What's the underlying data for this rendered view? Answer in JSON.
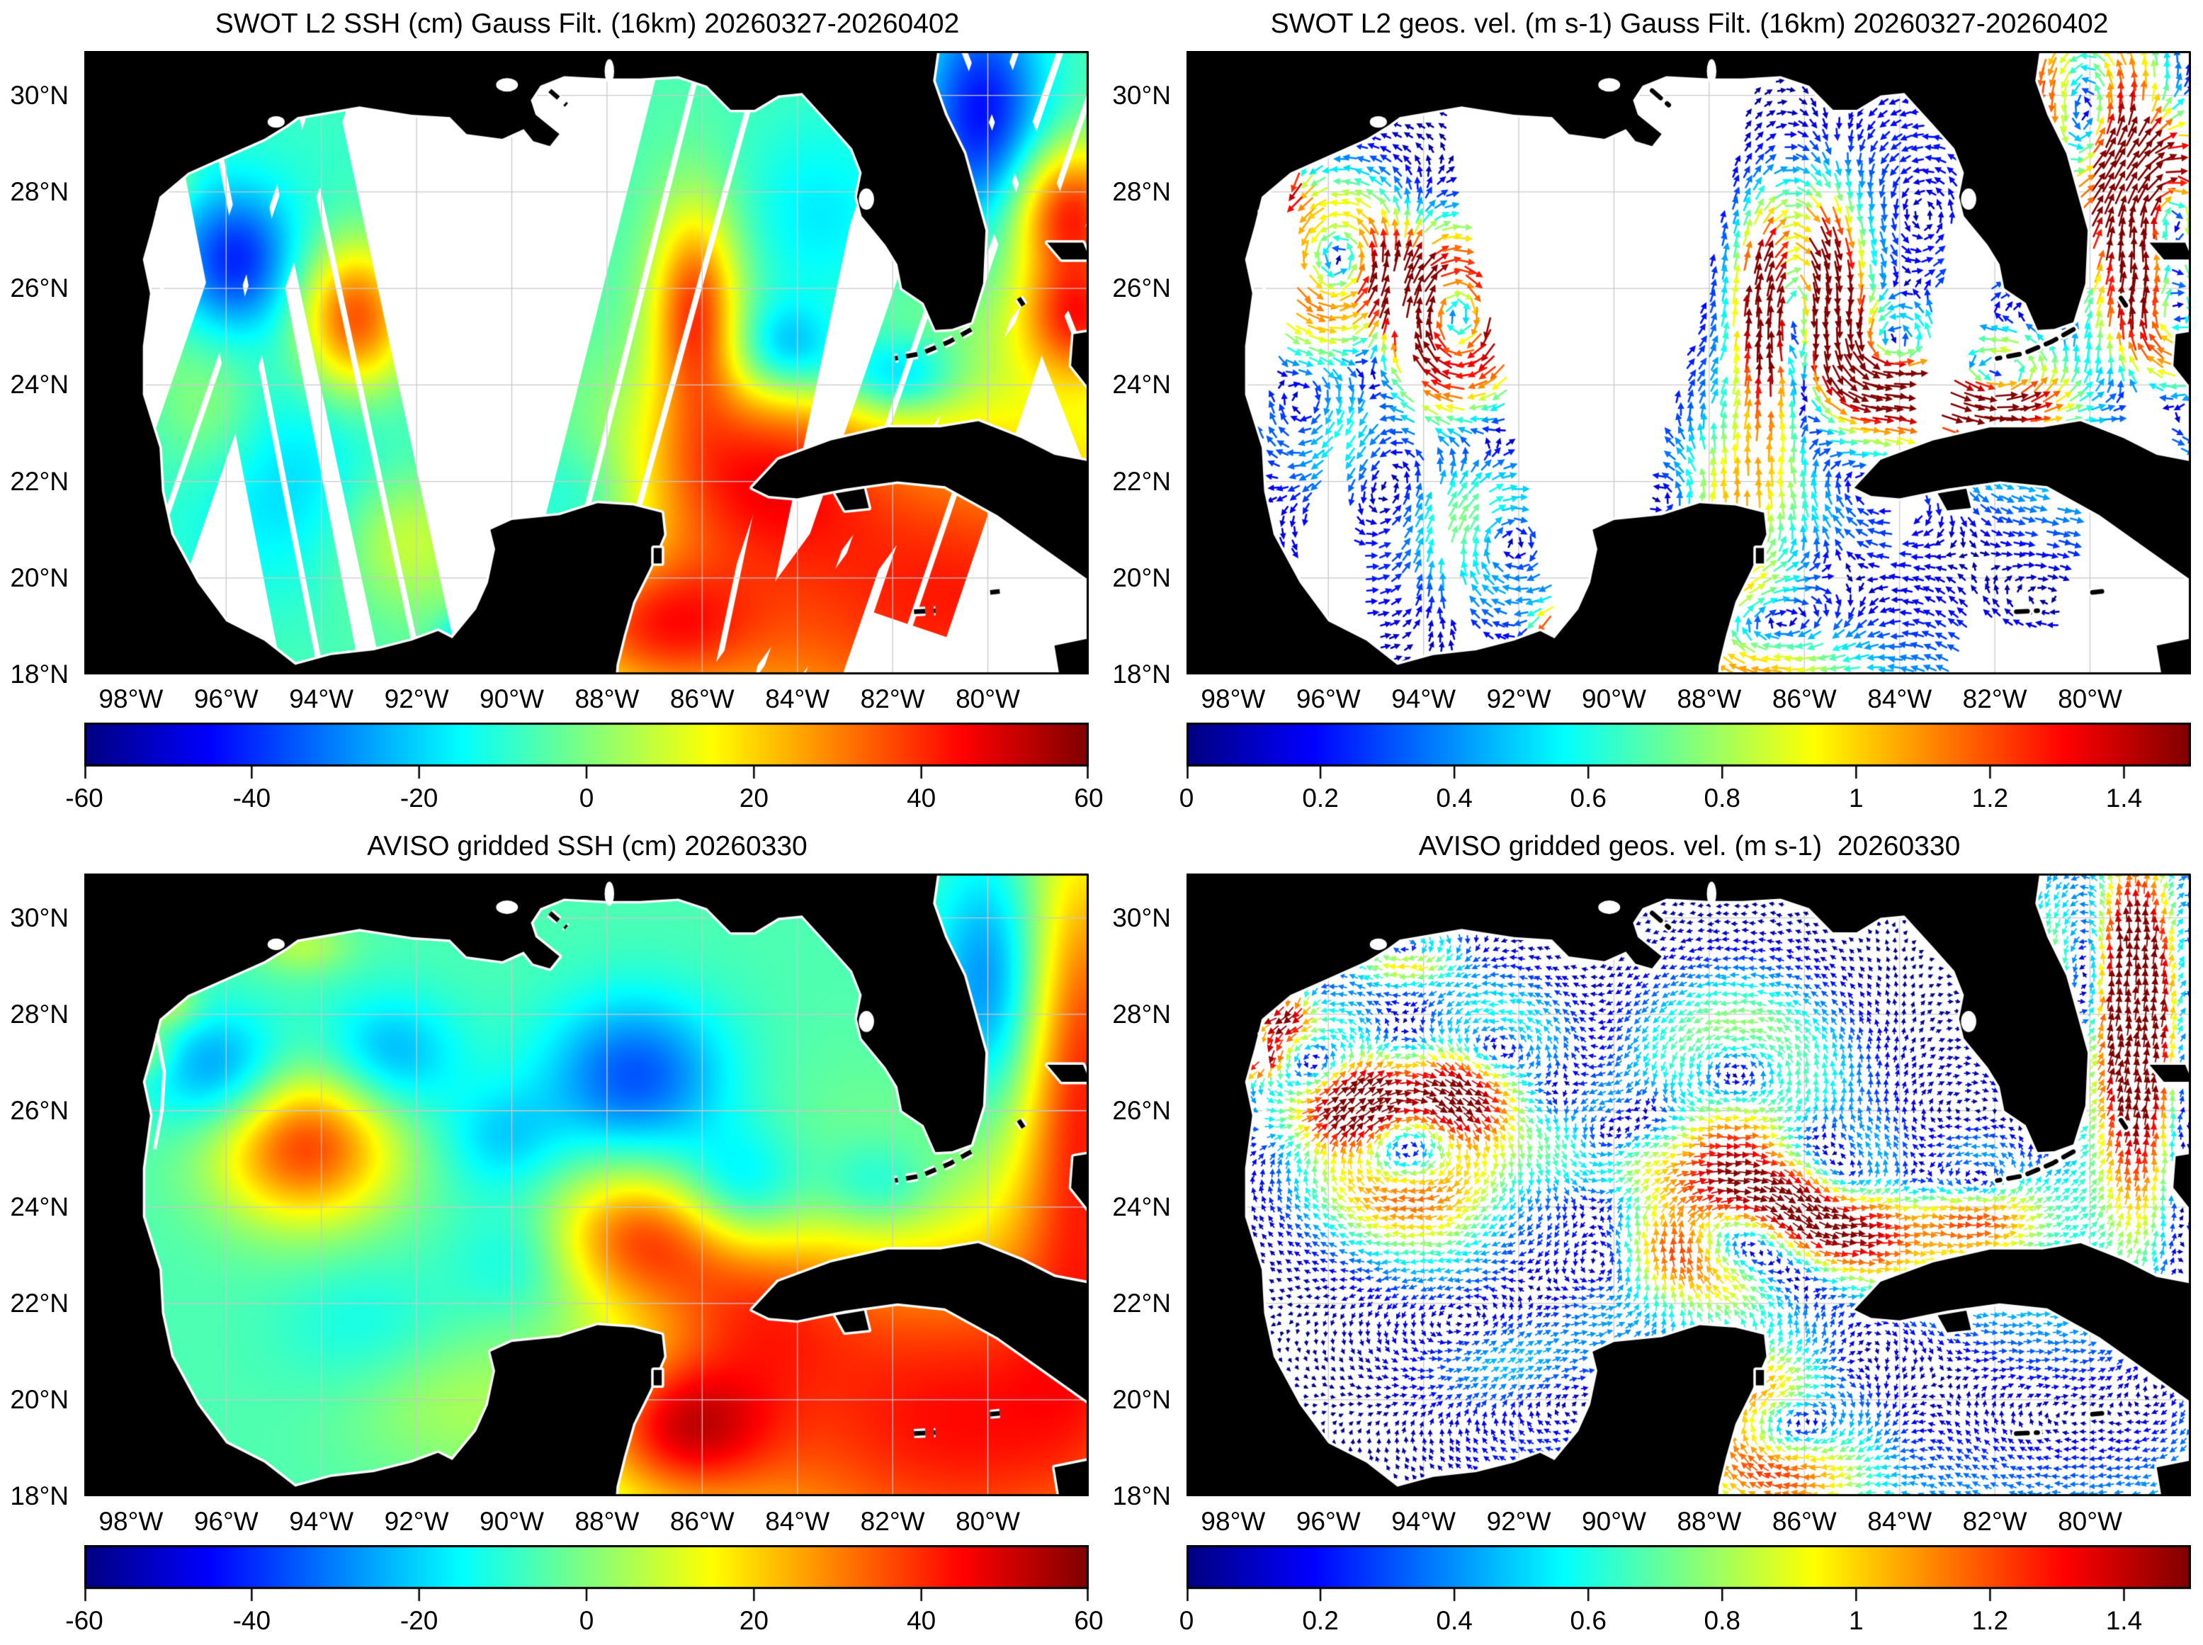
{
  "figure": {
    "background": "#ffffff",
    "accent_text_color": "#000000"
  },
  "geo": {
    "lon_min": -98.98,
    "lon_max": -77.88,
    "lat_min": 18.0,
    "lat_max": 30.92,
    "grid_lons": [
      -98,
      -96,
      -94,
      -92,
      -90,
      -88,
      -86,
      -84,
      -82,
      -80
    ],
    "grid_lats": [
      20,
      22,
      24,
      26,
      28,
      30
    ],
    "grid_color": "#c9c9c9"
  },
  "axes": {
    "x_ticks": [
      {
        "lon": -98,
        "label": "98°W"
      },
      {
        "lon": -96,
        "label": "96°W"
      },
      {
        "lon": -94,
        "label": "94°W"
      },
      {
        "lon": -92,
        "label": "92°W"
      },
      {
        "lon": -90,
        "label": "90°W"
      },
      {
        "lon": -88,
        "label": "88°W"
      },
      {
        "lon": -86,
        "label": "86°W"
      },
      {
        "lon": -84,
        "label": "84°W"
      },
      {
        "lon": -82,
        "label": "82°W"
      },
      {
        "lon": -80,
        "label": "80°W"
      }
    ],
    "y_ticks": [
      {
        "lat": 30,
        "label": "30°N"
      },
      {
        "lat": 28,
        "label": "28°N"
      },
      {
        "lat": 26,
        "label": "26°N"
      },
      {
        "lat": 24,
        "label": "24°N"
      },
      {
        "lat": 22,
        "label": "22°N"
      },
      {
        "lat": 20,
        "label": "20°N"
      },
      {
        "lat": 18,
        "label": "18°N"
      }
    ]
  },
  "colorbars": {
    "ssh": {
      "min": -60,
      "max": 60,
      "ticks": [
        {
          "v": -60,
          "label": "-60"
        },
        {
          "v": -40,
          "label": "-40"
        },
        {
          "v": -20,
          "label": "-20"
        },
        {
          "v": 0,
          "label": "0"
        },
        {
          "v": 20,
          "label": "20"
        },
        {
          "v": 40,
          "label": "40"
        },
        {
          "v": 60,
          "label": "60"
        }
      ]
    },
    "vel": {
      "min": 0,
      "max": 1.5,
      "ticks": [
        {
          "v": 0,
          "label": "0"
        },
        {
          "v": 0.2,
          "label": "0.2"
        },
        {
          "v": 0.4,
          "label": "0.4"
        },
        {
          "v": 0.6,
          "label": "0.6"
        },
        {
          "v": 0.8,
          "label": "0.8"
        },
        {
          "v": 1,
          "label": "1"
        },
        {
          "v": 1.2,
          "label": "1.2"
        },
        {
          "v": 1.4,
          "label": "1.4"
        }
      ]
    }
  },
  "chart_data": [
    {
      "id": "swot-ssh",
      "type": "heatmap_swath",
      "title": "SWOT L2 SSH (cm) Gauss Filt. (16km) 20260327-20260402",
      "units": "cm",
      "colorbar": "ssh",
      "field": "swot",
      "colormap": "jet"
    },
    {
      "id": "swot-vel",
      "type": "quiver_swath",
      "title": "SWOT L2 geos. vel. (m s-1) Gauss Filt. (16km) 20260327-20260402",
      "units": "m s-1",
      "colorbar": "vel",
      "field": "swot",
      "colormap": "jet",
      "quiver": {
        "spacing": 16,
        "lmin": 9,
        "lscale": 18,
        "lw": 2.6,
        "k": 0.05
      }
    },
    {
      "id": "aviso-ssh",
      "type": "heatmap",
      "title": "AVISO gridded SSH (cm) 20260330",
      "units": "cm",
      "colorbar": "ssh",
      "field": "aviso",
      "colormap": "jet"
    },
    {
      "id": "aviso-vel",
      "type": "quiver",
      "title": "AVISO gridded geos. vel. (m s-1)  20260330",
      "units": "m s-1",
      "colorbar": "vel",
      "field": "aviso",
      "colormap": "jet",
      "quiver": {
        "spacing": 12.6,
        "lmin": 6,
        "lscale": 11,
        "lw": 1.8,
        "k": 0.05
      }
    }
  ],
  "fields": {
    "swot": {
      "base": -6,
      "blobs": [
        [
          -95.8,
          26.6,
          -30,
          0.85,
          1.0
        ],
        [
          -93.3,
          25.4,
          46,
          0.85,
          1.1
        ],
        [
          -96.4,
          23.6,
          14,
          0.9,
          1.2
        ],
        [
          -92.3,
          20.8,
          16,
          1.0,
          1.0
        ],
        [
          -90.8,
          18.8,
          -22,
          0.45,
          0.35
        ],
        [
          -94.8,
          21.8,
          -10,
          1.5,
          1.5
        ],
        [
          -86.15,
          25.6,
          42,
          0.65,
          1.5
        ],
        [
          -88.6,
          21.5,
          -14,
          1.0,
          1.0
        ],
        [
          -84.2,
          24.7,
          -24,
          0.8,
          0.7
        ],
        [
          -83.5,
          27.3,
          -12,
          1.2,
          1.6
        ],
        [
          -81.9,
          24.15,
          -26,
          0.9,
          0.6
        ],
        [
          -80.1,
          29.6,
          -38,
          0.9,
          1.7
        ],
        [
          -78.3,
          27.6,
          46,
          0.9,
          1.0
        ],
        [
          -78.1,
          25.4,
          40,
          0.9,
          0.9
        ],
        [
          -80.7,
          19.5,
          48,
          4.5,
          3.0
        ],
        [
          -85.0,
          22.3,
          30,
          1.8,
          1.4
        ],
        [
          -87.0,
          19.0,
          30,
          1.5,
          1.0
        ],
        [
          -95.5,
          25.0,
          -6,
          3.5,
          3.5
        ],
        [
          -97.8,
          25.0,
          18,
          0.45,
          0.6
        ],
        [
          -97.3,
          28.2,
          14,
          0.4,
          0.35
        ]
      ]
    },
    "aviso": {
      "base": -6,
      "blobs": [
        [
          -96.1,
          26.8,
          -24,
          1.05,
          0.9
        ],
        [
          -92.6,
          27.1,
          -20,
          1.05,
          0.9
        ],
        [
          -90.2,
          25.4,
          -14,
          0.9,
          0.8
        ],
        [
          -89.8,
          22.9,
          -12,
          1.0,
          0.9
        ],
        [
          -94.35,
          25.3,
          44,
          1.35,
          1.15
        ],
        [
          -97.3,
          28.2,
          16,
          0.5,
          0.4
        ],
        [
          -97.7,
          27.2,
          12,
          0.4,
          0.35
        ],
        [
          -94.4,
          29.4,
          12,
          0.7,
          0.4
        ],
        [
          -87.4,
          26.7,
          -30,
          1.35,
          1.15
        ],
        [
          -85.2,
          24.3,
          -22,
          1.0,
          0.9
        ],
        [
          -87.3,
          23.4,
          34,
          1.4,
          1.0
        ],
        [
          -82.3,
          24.4,
          -16,
          0.9,
          0.7
        ],
        [
          -84.9,
          21.9,
          20,
          1.5,
          1.2
        ],
        [
          -86.4,
          19.4,
          34,
          1.3,
          1.0
        ],
        [
          -80.6,
          19.6,
          50,
          4.5,
          3.0
        ],
        [
          -78.0,
          26.8,
          45,
          1.0,
          3.6
        ],
        [
          -79.9,
          28.6,
          -26,
          0.85,
          1.8
        ],
        [
          -91.5,
          20.0,
          8,
          1.5,
          1.0
        ],
        [
          -93.0,
          21.5,
          -8,
          1.3,
          1.0
        ]
      ]
    }
  },
  "swaths": {
    "halfwidth_deg": 0.8,
    "gap_deg": 0.12,
    "list": [
      {
        "a": [
          -96.55,
          30.92
        ],
        "b": [
          -94.0,
          18.0
        ]
      },
      {
        "a": [
          -94.7,
          30.92
        ],
        "b": [
          -91.9,
          18.0
        ]
      },
      {
        "a": [
          -93.9,
          30.92
        ],
        "b": [
          -98.4,
          18.0
        ]
      },
      {
        "a": [
          -83.4,
          30.92
        ],
        "b": [
          -87.1,
          18.0
        ]
      },
      {
        "a": [
          -86.0,
          30.92
        ],
        "b": [
          -89.3,
          18.0
        ]
      },
      {
        "a": [
          -84.7,
          30.92
        ],
        "b": [
          -88.3,
          18.0
        ]
      },
      {
        "a": [
          -82.95,
          30.92
        ],
        "b": [
          -85.7,
          18.0
        ]
      },
      {
        "a": [
          -79.4,
          30.92
        ],
        "b": [
          -83.9,
          18.0
        ]
      },
      {
        "a": [
          -80.5,
          30.92
        ],
        "b": [
          -78.0,
          24.6
        ]
      },
      {
        "a": [
          -77.9,
          29.9
        ],
        "b": [
          -80.2,
          23.2
        ]
      },
      {
        "a": [
          -80.6,
          23.8
        ],
        "b": [
          -84.9,
          18.0
        ]
      },
      {
        "a": [
          -84.8,
          24.2
        ],
        "b": [
          -86.9,
          18.0
        ]
      }
    ]
  },
  "land": {
    "color": "#000000",
    "coast_gap_color": "#ffffff",
    "mainland": [
      [
        -99.1,
        31.0
      ],
      [
        -81.05,
        31.0
      ],
      [
        -81.15,
        30.3
      ],
      [
        -80.9,
        29.6
      ],
      [
        -80.5,
        28.8
      ],
      [
        -80.05,
        27.2
      ],
      [
        -80.1,
        26.1
      ],
      [
        -80.35,
        25.3
      ],
      [
        -80.75,
        25.16
      ],
      [
        -81.1,
        25.14
      ],
      [
        -81.35,
        25.7
      ],
      [
        -81.8,
        26.0
      ],
      [
        -81.9,
        26.5
      ],
      [
        -82.15,
        26.9
      ],
      [
        -82.65,
        27.5
      ],
      [
        -82.75,
        27.9
      ],
      [
        -82.65,
        28.4
      ],
      [
        -82.85,
        28.9
      ],
      [
        -83.3,
        29.4
      ],
      [
        -83.9,
        30.05
      ],
      [
        -84.4,
        30.0
      ],
      [
        -84.9,
        29.7
      ],
      [
        -85.4,
        29.7
      ],
      [
        -85.9,
        30.2
      ],
      [
        -86.5,
        30.4
      ],
      [
        -87.3,
        30.35
      ],
      [
        -88.0,
        30.35
      ],
      [
        -88.9,
        30.4
      ],
      [
        -89.4,
        30.2
      ],
      [
        -89.6,
        29.9
      ],
      [
        -89.5,
        29.6
      ],
      [
        -89.0,
        29.2
      ],
      [
        -89.2,
        28.95
      ],
      [
        -89.55,
        29.05
      ],
      [
        -89.75,
        29.3
      ],
      [
        -90.2,
        29.1
      ],
      [
        -90.95,
        29.2
      ],
      [
        -91.3,
        29.55
      ],
      [
        -92.1,
        29.6
      ],
      [
        -93.2,
        29.77
      ],
      [
        -94.5,
        29.55
      ],
      [
        -94.75,
        29.37
      ],
      [
        -95.2,
        29.1
      ],
      [
        -96.0,
        28.75
      ],
      [
        -96.8,
        28.4
      ],
      [
        -97.4,
        27.9
      ],
      [
        -97.55,
        27.3
      ],
      [
        -97.75,
        26.6
      ],
      [
        -97.6,
        25.9
      ],
      [
        -97.75,
        24.8
      ],
      [
        -97.75,
        23.8
      ],
      [
        -97.4,
        22.7
      ],
      [
        -97.35,
        21.8
      ],
      [
        -97.15,
        20.9
      ],
      [
        -96.6,
        19.9
      ],
      [
        -96.0,
        19.1
      ],
      [
        -95.2,
        18.7
      ],
      [
        -94.55,
        18.2
      ],
      [
        -93.8,
        18.4
      ],
      [
        -92.9,
        18.5
      ],
      [
        -92.1,
        18.7
      ],
      [
        -91.55,
        18.9
      ],
      [
        -91.25,
        18.75
      ],
      [
        -90.75,
        19.35
      ],
      [
        -90.5,
        19.9
      ],
      [
        -90.35,
        20.6
      ],
      [
        -90.45,
        21.0
      ],
      [
        -90.0,
        21.2
      ],
      [
        -89.0,
        21.3
      ],
      [
        -88.2,
        21.55
      ],
      [
        -87.45,
        21.5
      ],
      [
        -86.85,
        21.35
      ],
      [
        -86.8,
        20.9
      ],
      [
        -87.1,
        20.2
      ],
      [
        -87.45,
        19.5
      ],
      [
        -87.65,
        18.8
      ],
      [
        -87.8,
        18.2
      ],
      [
        -87.85,
        17.5
      ],
      [
        -99.1,
        17.5
      ]
    ],
    "islands": [
      [
        [
          -84.95,
          21.87
        ],
        [
          -84.4,
          22.45
        ],
        [
          -83.3,
          22.85
        ],
        [
          -82.1,
          23.12
        ],
        [
          -81.0,
          23.12
        ],
        [
          -80.2,
          23.25
        ],
        [
          -79.3,
          22.9
        ],
        [
          -78.6,
          22.55
        ],
        [
          -77.8,
          22.4
        ],
        [
          -77.8,
          19.9
        ],
        [
          -78.8,
          20.6
        ],
        [
          -79.8,
          21.3
        ],
        [
          -80.9,
          21.9
        ],
        [
          -81.9,
          22.0
        ],
        [
          -83.0,
          21.85
        ],
        [
          -84.0,
          21.65
        ],
        [
          -84.6,
          21.7
        ]
      ],
      [
        [
          -83.2,
          21.75
        ],
        [
          -82.6,
          21.85
        ],
        [
          -82.5,
          21.45
        ],
        [
          -83.0,
          21.4
        ]
      ],
      [
        [
          -78.6,
          18.6
        ],
        [
          -77.85,
          18.75
        ],
        [
          -77.8,
          17.9
        ],
        [
          -78.5,
          18.0
        ]
      ],
      [
        [
          -78.75,
          26.95
        ],
        [
          -78.0,
          26.95
        ],
        [
          -77.85,
          26.6
        ],
        [
          -78.45,
          26.6
        ]
      ],
      [
        [
          -78.2,
          25.05
        ],
        [
          -77.9,
          25.1
        ],
        [
          -77.85,
          23.9
        ],
        [
          -78.25,
          24.4
        ]
      ],
      [
        [
          -87.02,
          20.62
        ],
        [
          -86.85,
          20.62
        ],
        [
          -86.85,
          20.3
        ],
        [
          -87.02,
          20.3
        ]
      ]
    ],
    "dashes": [
      [
        [
          -80.35,
          25.15
        ],
        [
          -80.8,
          24.9
        ],
        [
          -81.4,
          24.65
        ],
        [
          -81.95,
          24.55
        ]
      ],
      [
        [
          -89.2,
          30.1
        ],
        [
          -88.85,
          29.8
        ]
      ],
      [
        [
          -81.55,
          19.3
        ],
        [
          -81.1,
          19.32
        ]
      ],
      [
        [
          -79.95,
          19.7
        ],
        [
          -79.75,
          19.72
        ]
      ],
      [
        [
          -79.35,
          25.8
        ],
        [
          -79.25,
          25.65
        ]
      ]
    ],
    "bays": [
      {
        "lon": -82.55,
        "lat": 27.85,
        "rx": 0.16,
        "ry": 0.22
      },
      {
        "lon": -90.1,
        "lat": 30.22,
        "rx": 0.23,
        "ry": 0.14
      },
      {
        "lon": -87.95,
        "lat": 30.5,
        "rx": 0.1,
        "ry": 0.25
      },
      {
        "lon": -94.95,
        "lat": 29.45,
        "rx": 0.18,
        "ry": 0.12
      }
    ],
    "lagoon_lines": [
      [
        [
          -97.45,
          27.6
        ],
        [
          -97.3,
          26.8
        ],
        [
          -97.35,
          26.0
        ],
        [
          -97.5,
          25.2
        ]
      ]
    ]
  }
}
